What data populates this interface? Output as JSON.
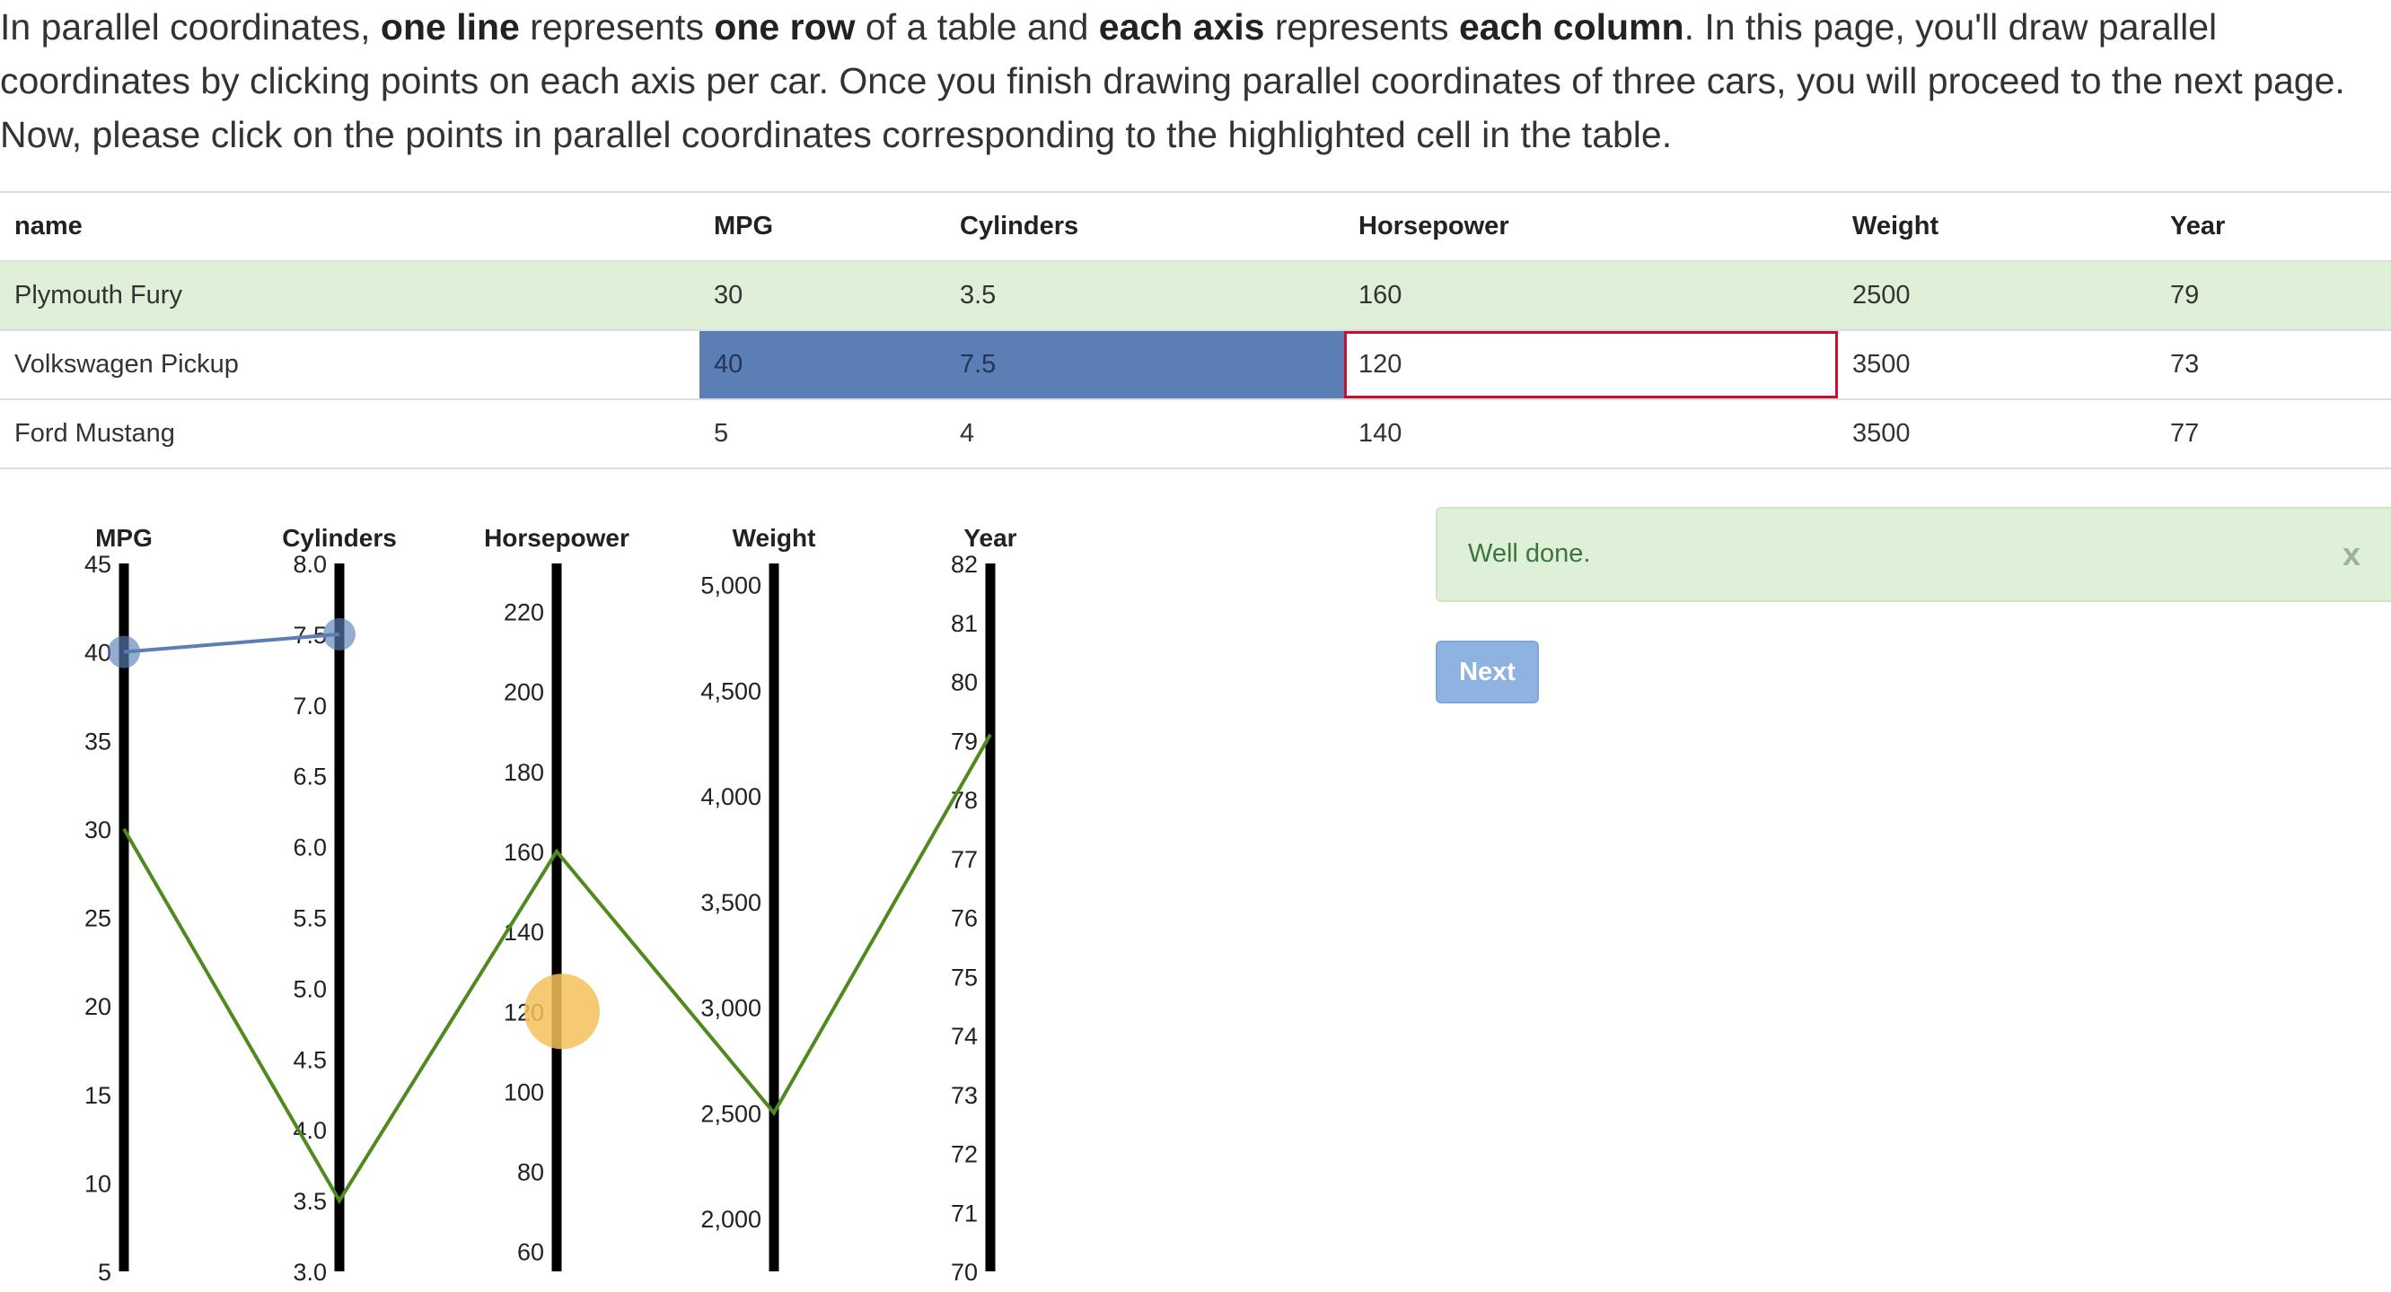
{
  "intro": {
    "p1": "In parallel coordinates, ",
    "b1": "one line",
    "p2": " represents ",
    "b2": "one row",
    "p3": " of a table and ",
    "b3": "each axis",
    "p4": " represents ",
    "b4": "each column",
    "p5": ". In this page, you'll draw parallel coordinates by clicking points on each axis per car. Once you finish drawing parallel coordinates of three cars, you will proceed to the next page. Now, please click on the points in parallel coordinates corresponding to the highlighted cell in the table."
  },
  "table": {
    "headers": [
      "name",
      "MPG",
      "Cylinders",
      "Horsepower",
      "Weight",
      "Year"
    ],
    "rows": [
      [
        "Plymouth Fury",
        "30",
        "3.5",
        "160",
        "2500",
        "79"
      ],
      [
        "Volkswagen Pickup",
        "40",
        "7.5",
        "120",
        "3500",
        "73"
      ],
      [
        "Ford Mustang",
        "5",
        "4",
        "140",
        "3500",
        "77"
      ]
    ]
  },
  "alert": {
    "text": "Well done.",
    "close": "x"
  },
  "next_label": "Next",
  "colors": {
    "done_line": "#4e8a1e",
    "in_progress": "#5b7fb5",
    "target_highlight": "#f5c15a",
    "table_done_row": "#dfefd8",
    "target_cell_border": "#c8102e"
  },
  "chart_data": {
    "type": "parallel-coordinates",
    "axes": [
      {
        "name": "MPG",
        "ticks": [
          "5",
          "10",
          "15",
          "20",
          "25",
          "30",
          "35",
          "40",
          "45"
        ],
        "range": [
          5,
          45
        ]
      },
      {
        "name": "Cylinders",
        "ticks": [
          "3.0",
          "3.5",
          "4.0",
          "4.5",
          "5.0",
          "5.5",
          "6.0",
          "6.5",
          "7.0",
          "7.5",
          "8.0"
        ],
        "range": [
          3,
          8
        ]
      },
      {
        "name": "Horsepower",
        "ticks": [
          "60",
          "80",
          "100",
          "120",
          "140",
          "160",
          "180",
          "200",
          "220"
        ],
        "range": [
          55,
          232
        ]
      },
      {
        "name": "Weight",
        "ticks": [
          "2,000",
          "2,500",
          "3,000",
          "3,500",
          "4,000",
          "4,500",
          "5,000"
        ],
        "range": [
          1750,
          5100
        ]
      },
      {
        "name": "Year",
        "ticks": [
          "70",
          "71",
          "72",
          "73",
          "74",
          "75",
          "76",
          "77",
          "78",
          "79",
          "80",
          "81",
          "82"
        ],
        "range": [
          70,
          82
        ]
      }
    ],
    "completed_line": {
      "values": [
        30,
        3.5,
        160,
        2500,
        79.1
      ]
    },
    "in_progress_line": {
      "values": [
        40,
        7.5
      ]
    },
    "target_point": {
      "axis": "Horsepower",
      "value": 120
    }
  }
}
